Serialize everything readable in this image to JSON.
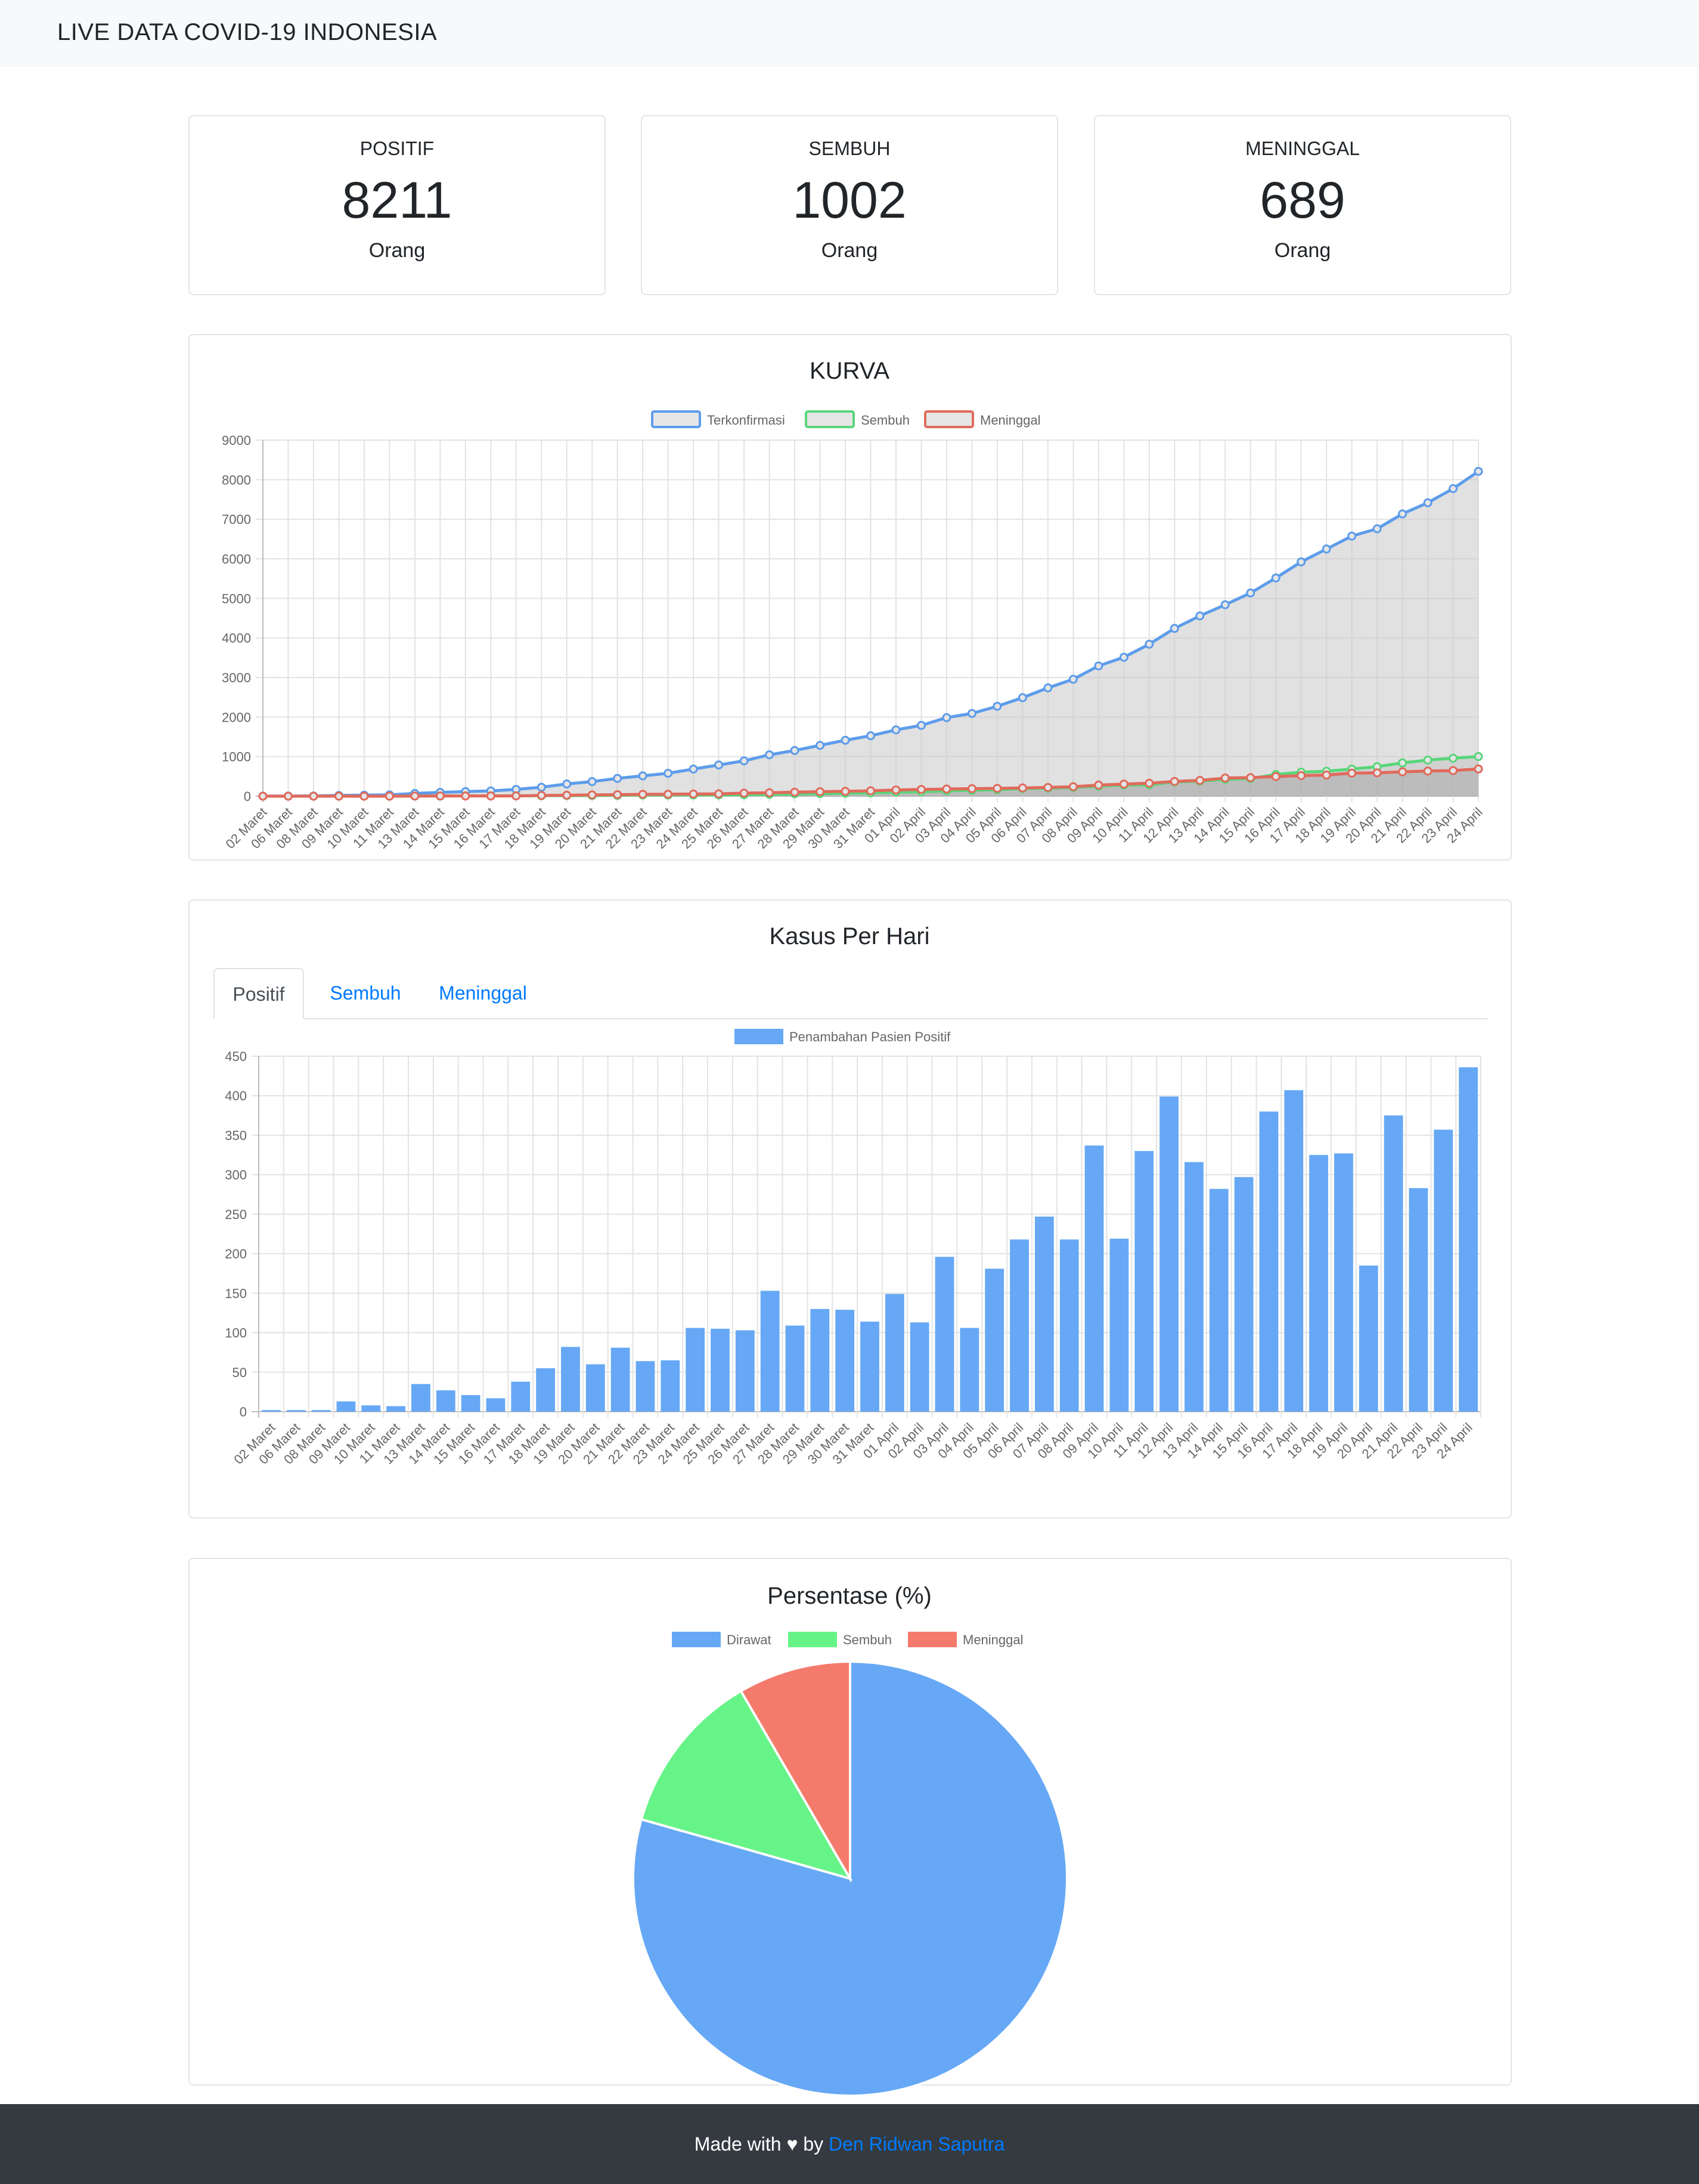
{
  "navbar": {
    "brand": "LIVE DATA COVID-19 INDONESIA"
  },
  "stats": [
    {
      "label": "POSITIF",
      "value": "8211",
      "unit": "Orang"
    },
    {
      "label": "SEMBUH",
      "value": "1002",
      "unit": "Orang"
    },
    {
      "label": "MENINGGAL",
      "value": "689",
      "unit": "Orang"
    }
  ],
  "curve_card": {
    "title": "KURVA"
  },
  "daily_card": {
    "title": "Kasus Per Hari",
    "tabs": [
      {
        "label": "Positif",
        "active": true
      },
      {
        "label": "Sembuh",
        "active": false
      },
      {
        "label": "Meninggal",
        "active": false
      }
    ]
  },
  "pie_card": {
    "title": "Persentase (%)"
  },
  "footer": {
    "prefix": "Made with ♥ by ",
    "author": "Den Ridwan Saputra"
  },
  "colors": {
    "blue": "#66a8f5",
    "blue_line": "#5d9ceb",
    "green": "#66f488",
    "green_line": "#5ad67a",
    "red": "#f47a6c",
    "red_line": "#e06a5c",
    "area_fill": "#e0e0e0"
  },
  "chart_data": [
    {
      "type": "line",
      "title": "KURVA",
      "legend": [
        "Terkonfirmasi",
        "Sembuh",
        "Meninggal"
      ],
      "legend_position": "top",
      "grid": true,
      "ylim": [
        0,
        9000
      ],
      "yticks": [
        0,
        1000,
        2000,
        3000,
        4000,
        5000,
        6000,
        7000,
        8000,
        9000
      ],
      "categories": [
        "02 Maret",
        "06 Maret",
        "08 Maret",
        "09 Maret",
        "10 Maret",
        "11 Maret",
        "13 Maret",
        "14 Maret",
        "15 Maret",
        "16 Maret",
        "17 Maret",
        "18 Maret",
        "19 Maret",
        "20 Maret",
        "21 Maret",
        "22 Maret",
        "23 Maret",
        "24 Maret",
        "25 Maret",
        "26 Maret",
        "27 Maret",
        "28 Maret",
        "29 Maret",
        "30 Maret",
        "31 Maret",
        "01 April",
        "02 April",
        "03 April",
        "04 April",
        "05 April",
        "06 April",
        "07 April",
        "08 April",
        "09 April",
        "10 April",
        "11 April",
        "12 April",
        "13 April",
        "14 April",
        "15 April",
        "16 April",
        "17 April",
        "18 April",
        "19 April",
        "20 April",
        "21 April",
        "22 April",
        "23 April",
        "24 April"
      ],
      "series": [
        {
          "name": "Terkonfirmasi",
          "values": [
            2,
            4,
            6,
            19,
            27,
            34,
            69,
            96,
            117,
            134,
            172,
            227,
            309,
            369,
            450,
            514,
            579,
            686,
            790,
            893,
            1046,
            1155,
            1285,
            1414,
            1528,
            1677,
            1790,
            1986,
            2092,
            2273,
            2491,
            2738,
            2956,
            3293,
            3512,
            3842,
            4241,
            4557,
            4839,
            5136,
            5516,
            5923,
            6248,
            6575,
            6760,
            7135,
            7418,
            7775,
            8211
          ]
        },
        {
          "name": "Sembuh",
          "values": [
            0,
            0,
            0,
            0,
            0,
            0,
            3,
            5,
            8,
            8,
            9,
            11,
            15,
            16,
            20,
            29,
            30,
            30,
            31,
            35,
            46,
            59,
            64,
            75,
            81,
            103,
            112,
            134,
            150,
            164,
            192,
            202,
            222,
            252,
            282,
            286,
            359,
            380,
            426,
            446,
            548,
            607,
            631,
            686,
            747,
            842,
            913,
            960,
            1002
          ]
        },
        {
          "name": "Meninggal",
          "values": [
            0,
            0,
            0,
            0,
            0,
            1,
            4,
            5,
            5,
            5,
            7,
            19,
            25,
            32,
            38,
            48,
            49,
            55,
            58,
            78,
            87,
            102,
            114,
            122,
            136,
            157,
            170,
            181,
            191,
            198,
            209,
            221,
            240,
            280,
            306,
            327,
            373,
            399,
            459,
            469,
            496,
            520,
            535,
            582,
            590,
            616,
            635,
            647,
            689
          ]
        }
      ]
    },
    {
      "type": "bar",
      "title": "Kasus Per Hari",
      "legend": [
        "Penambahan Pasien Positif"
      ],
      "legend_position": "top",
      "grid": true,
      "ylim": [
        0,
        450
      ],
      "yticks": [
        0,
        50,
        100,
        150,
        200,
        250,
        300,
        350,
        400,
        450
      ],
      "categories": [
        "02 Maret",
        "06 Maret",
        "08 Maret",
        "09 Maret",
        "10 Maret",
        "11 Maret",
        "13 Maret",
        "14 Maret",
        "15 Maret",
        "16 Maret",
        "17 Maret",
        "18 Maret",
        "19 Maret",
        "20 Maret",
        "21 Maret",
        "22 Maret",
        "23 Maret",
        "24 Maret",
        "25 Maret",
        "26 Maret",
        "27 Maret",
        "28 Maret",
        "29 Maret",
        "30 Maret",
        "31 Maret",
        "01 April",
        "02 April",
        "03 April",
        "04 April",
        "05 April",
        "06 April",
        "07 April",
        "08 April",
        "09 April",
        "10 April",
        "11 April",
        "12 April",
        "13 April",
        "14 April",
        "15 April",
        "16 April",
        "17 April",
        "18 April",
        "19 April",
        "20 April",
        "21 April",
        "22 April",
        "23 April",
        "24 April"
      ],
      "series": [
        {
          "name": "Penambahan Pasien Positif",
          "values": [
            2,
            2,
            2,
            13,
            8,
            7,
            35,
            27,
            21,
            17,
            38,
            55,
            82,
            60,
            81,
            64,
            65,
            106,
            105,
            103,
            153,
            109,
            130,
            129,
            114,
            149,
            113,
            196,
            106,
            181,
            218,
            247,
            218,
            337,
            219,
            330,
            399,
            316,
            282,
            297,
            380,
            407,
            325,
            327,
            185,
            375,
            283,
            357,
            436
          ]
        }
      ]
    },
    {
      "type": "pie",
      "title": "Persentase (%)",
      "legend": [
        "Dirawat",
        "Sembuh",
        "Meninggal"
      ],
      "legend_position": "top",
      "categories": [
        "Dirawat",
        "Sembuh",
        "Meninggal"
      ],
      "values": [
        6520,
        1002,
        689
      ]
    }
  ]
}
